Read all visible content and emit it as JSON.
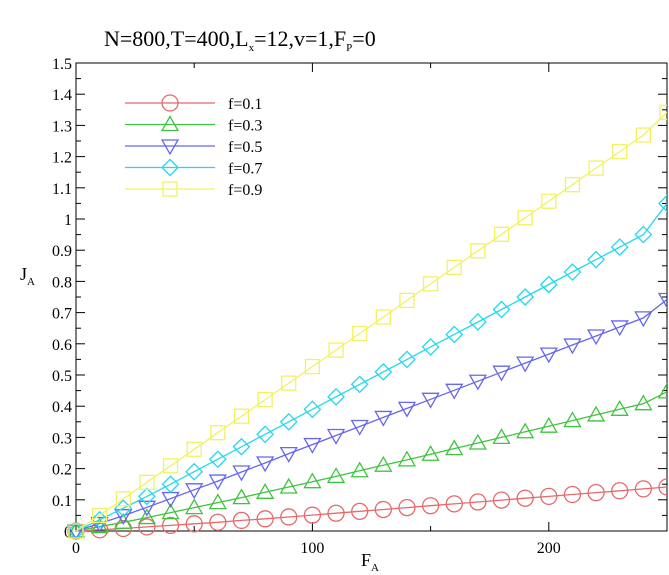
{
  "chart_data": {
    "type": "line",
    "title": {
      "parts": [
        {
          "text": "N=800,T=400,L"
        },
        {
          "text": "x",
          "sub": true
        },
        {
          "text": "=12,v=1,F"
        },
        {
          "text": "P",
          "sub": true
        },
        {
          "text": "=0"
        }
      ]
    },
    "xlabel": {
      "main": "F",
      "sub": "A"
    },
    "ylabel": {
      "main": "J",
      "sub": "A"
    },
    "xlim": [
      0,
      250
    ],
    "ylim": [
      0,
      1.5
    ],
    "xticks": [
      {
        "value": 0,
        "label": "0"
      },
      {
        "value": 100,
        "label": "100"
      },
      {
        "value": 200,
        "label": "200"
      }
    ],
    "yticks": [
      {
        "value": 0,
        "label": "0"
      },
      {
        "value": 0.1,
        "label": "0.1"
      },
      {
        "value": 0.2,
        "label": "0.2"
      },
      {
        "value": 0.3,
        "label": "0.3"
      },
      {
        "value": 0.4,
        "label": "0.4"
      },
      {
        "value": 0.5,
        "label": "0.5"
      },
      {
        "value": 0.6,
        "label": "0.6"
      },
      {
        "value": 0.7,
        "label": "0.7"
      },
      {
        "value": 0.8,
        "label": "0.8"
      },
      {
        "value": 0.9,
        "label": "0.9"
      },
      {
        "value": 1,
        "label": "1"
      },
      {
        "value": 1.1,
        "label": "1.1"
      },
      {
        "value": 1.2,
        "label": "1.2"
      },
      {
        "value": 1.3,
        "label": "1.3"
      },
      {
        "value": 1.4,
        "label": "1.4"
      },
      {
        "value": 1.5,
        "label": "1.5"
      }
    ],
    "grid": false,
    "legend_position": "top-left",
    "x": [
      0,
      10,
      20,
      30,
      40,
      50,
      60,
      70,
      80,
      90,
      100,
      110,
      120,
      130,
      140,
      150,
      160,
      170,
      180,
      190,
      200,
      210,
      220,
      230,
      240,
      250
    ],
    "series": [
      {
        "name": "f=0.1",
        "color": "#e8686a",
        "marker": "circle",
        "values": [
          0,
          0.004,
          0.008,
          0.013,
          0.018,
          0.023,
          0.028,
          0.034,
          0.039,
          0.045,
          0.051,
          0.057,
          0.063,
          0.069,
          0.075,
          0.081,
          0.087,
          0.093,
          0.099,
          0.105,
          0.111,
          0.117,
          0.123,
          0.129,
          0.135,
          0.141
        ]
      },
      {
        "name": "f=0.3",
        "color": "#3fc43f",
        "marker": "triangle-up",
        "values": [
          0,
          0.014,
          0.028,
          0.043,
          0.059,
          0.075,
          0.091,
          0.107,
          0.124,
          0.141,
          0.158,
          0.175,
          0.193,
          0.211,
          0.228,
          0.246,
          0.264,
          0.282,
          0.3,
          0.318,
          0.336,
          0.354,
          0.372,
          0.39,
          0.408,
          0.446
        ]
      },
      {
        "name": "f=0.5",
        "color": "#6666ee",
        "marker": "triangle-down",
        "values": [
          0,
          0.024,
          0.049,
          0.076,
          0.104,
          0.132,
          0.16,
          0.189,
          0.218,
          0.248,
          0.277,
          0.306,
          0.335,
          0.364,
          0.393,
          0.422,
          0.451,
          0.48,
          0.509,
          0.538,
          0.567,
          0.596,
          0.625,
          0.654,
          0.683,
          0.742
        ]
      },
      {
        "name": "f=0.7",
        "color": "#22d8ee",
        "marker": "diamond",
        "values": [
          0,
          0.036,
          0.073,
          0.111,
          0.15,
          0.19,
          0.23,
          0.27,
          0.31,
          0.35,
          0.39,
          0.43,
          0.47,
          0.51,
          0.55,
          0.59,
          0.63,
          0.67,
          0.71,
          0.75,
          0.79,
          0.83,
          0.87,
          0.91,
          0.95,
          1.05
        ]
      },
      {
        "name": "f=0.9",
        "color": "#f2f260",
        "marker": "square",
        "values": [
          0,
          0.05,
          0.103,
          0.156,
          0.209,
          0.262,
          0.315,
          0.368,
          0.421,
          0.474,
          0.527,
          0.58,
          0.633,
          0.686,
          0.739,
          0.792,
          0.845,
          0.898,
          0.951,
          1.004,
          1.057,
          1.11,
          1.163,
          1.216,
          1.269,
          1.342
        ]
      }
    ]
  }
}
